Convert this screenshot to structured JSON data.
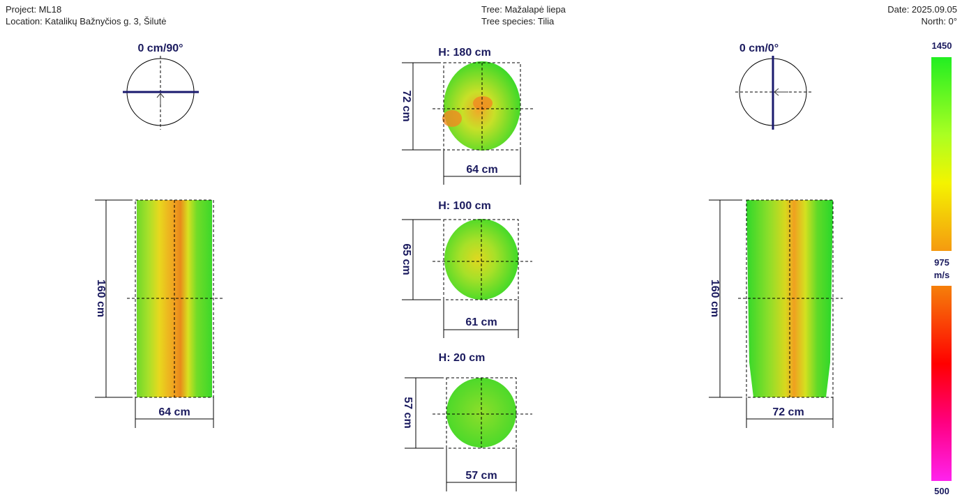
{
  "header": {
    "project": "Project: ML18",
    "location": "Location: Katalikų Bažnyčios g. 3, Šilutė",
    "tree": "Tree: Mažalapė liepa",
    "species": "Tree species: Tilia",
    "date": "Date: 2025.09.05",
    "north": "North: 0°"
  },
  "views": [
    {
      "title": "0 cm/90°",
      "height": "160 cm",
      "width": "64 cm"
    },
    {
      "title": "0 cm/0°",
      "height": "160 cm",
      "width": "72 cm"
    }
  ],
  "sections": [
    {
      "title": "H: 180 cm",
      "height": "72 cm",
      "width": "64 cm"
    },
    {
      "title": "H: 100 cm",
      "height": "65 cm",
      "width": "61 cm"
    },
    {
      "title": "H: 20 cm",
      "height": "57 cm",
      "width": "57 cm"
    }
  ],
  "scale": {
    "max": "1450",
    "mid": "975",
    "unit": "m/s",
    "min": "500"
  }
}
